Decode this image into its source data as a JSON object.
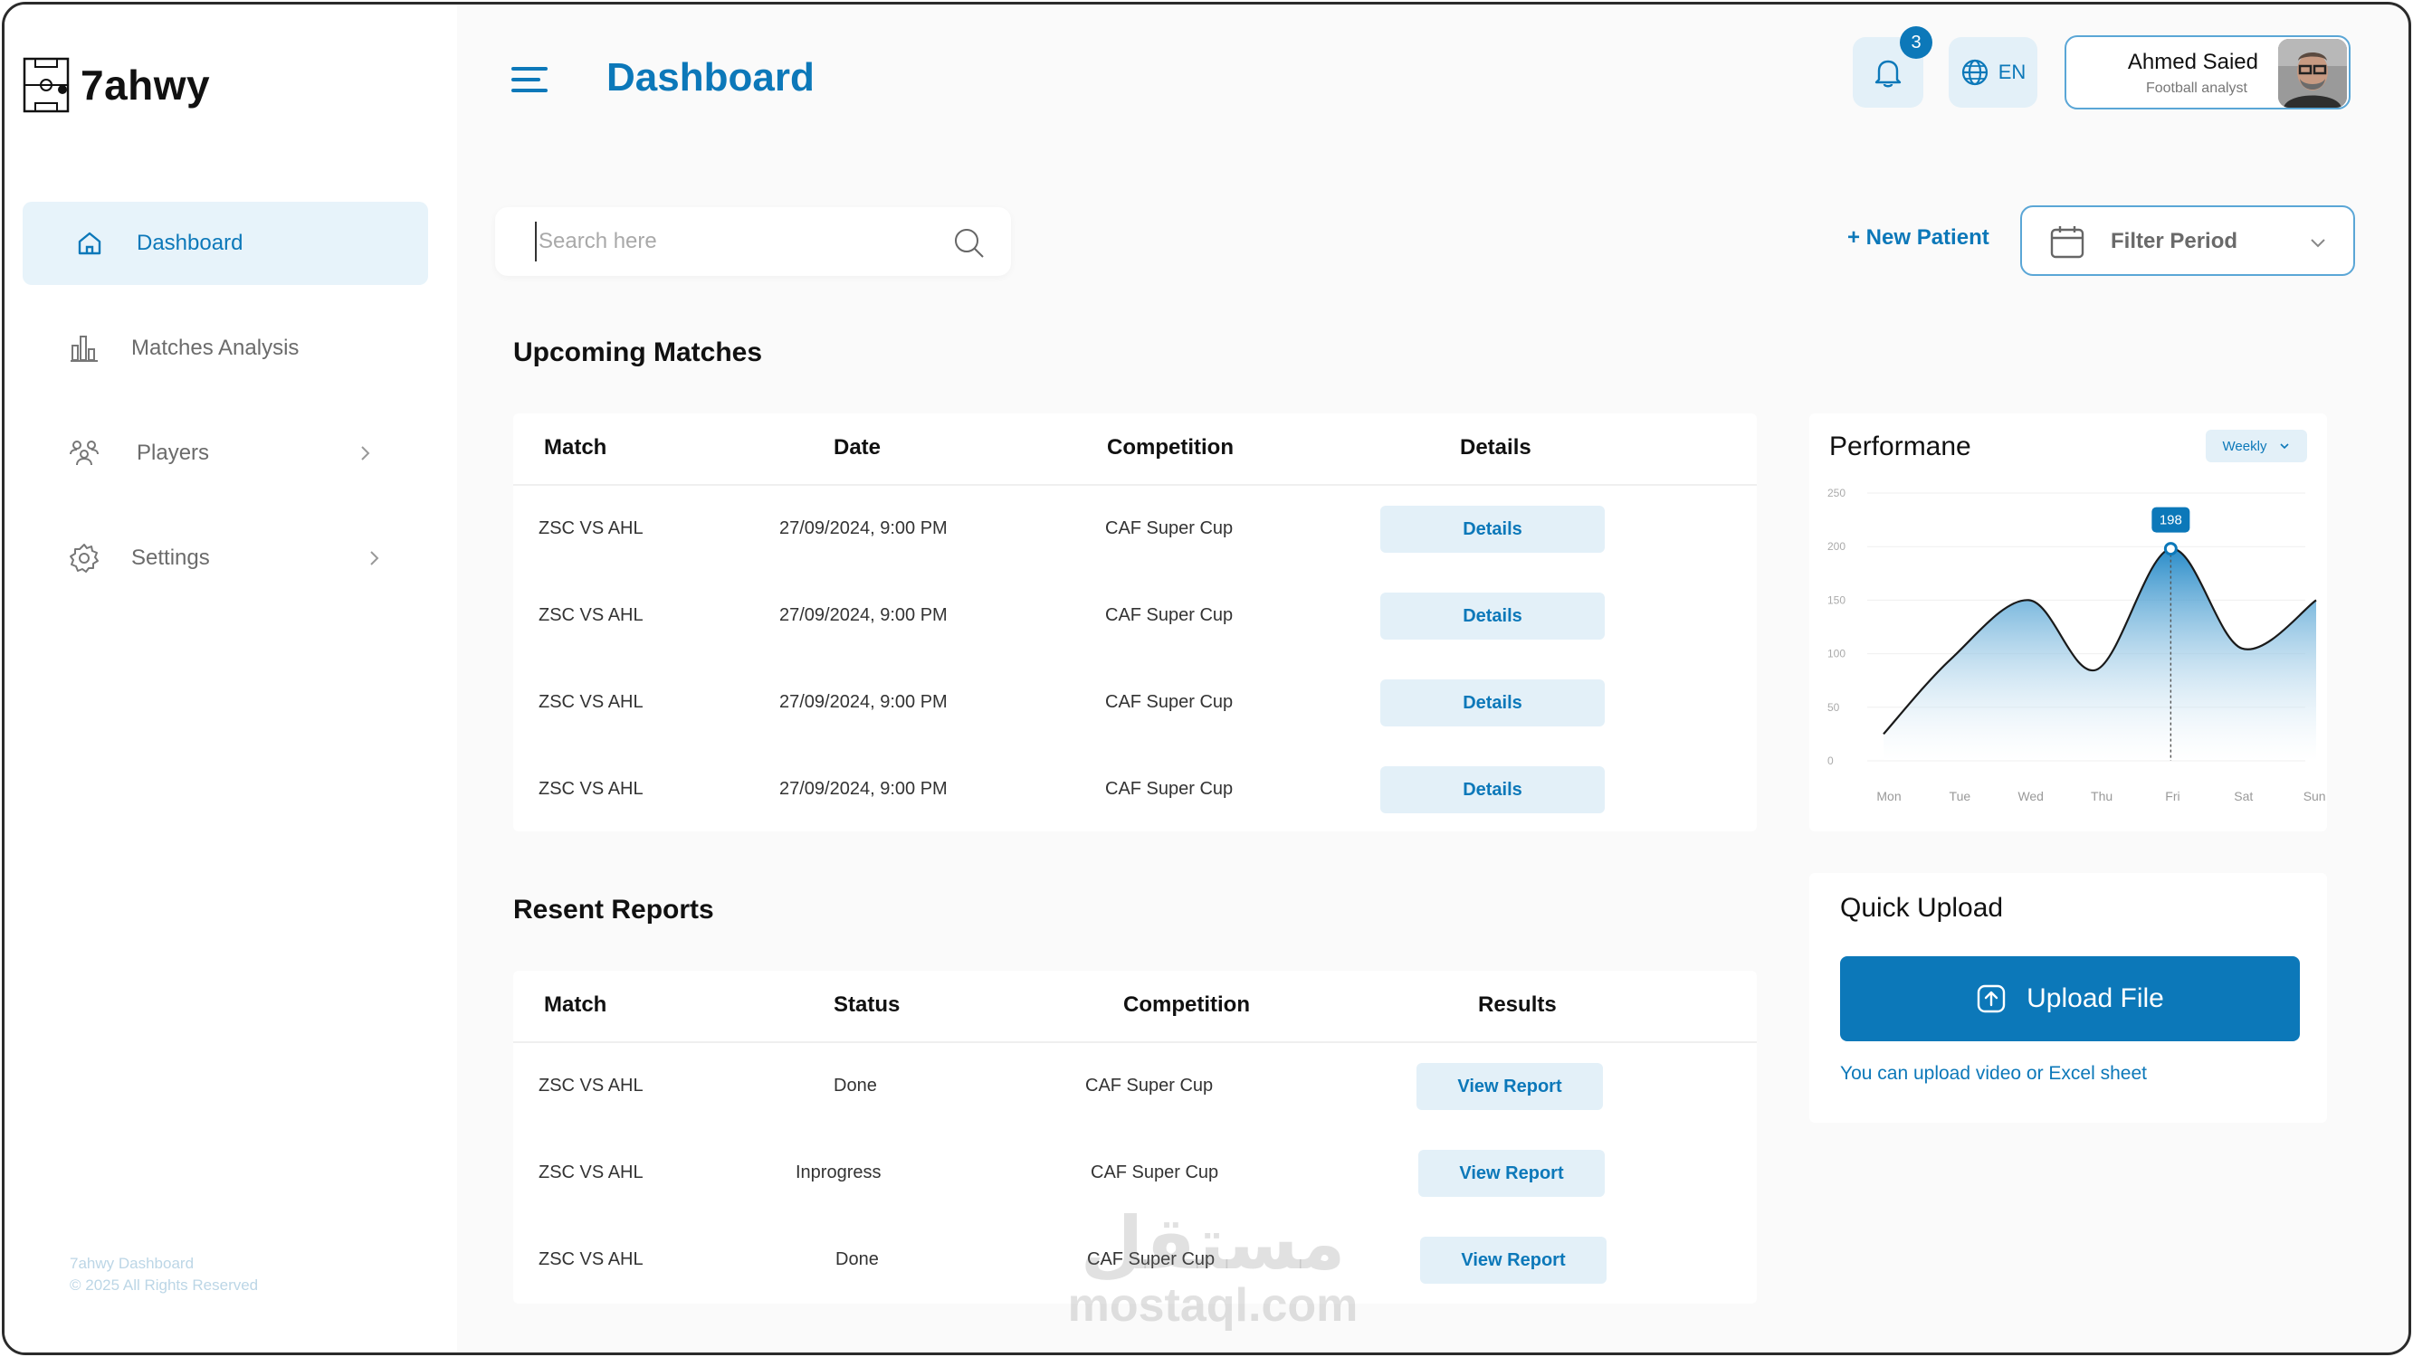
{
  "app": {
    "logo": "7ahwy"
  },
  "sidebar": {
    "items": [
      {
        "label": "Dashboard",
        "icon": "home-icon"
      },
      {
        "label": "Matches Analysis",
        "icon": "bar-chart-icon"
      },
      {
        "label": "Players",
        "icon": "players-icon"
      },
      {
        "label": "Settings",
        "icon": "gear-icon"
      }
    ],
    "footer": {
      "title": "7ahwy Dashboard",
      "copyright": "© 2025 All Rights Reserved"
    }
  },
  "header": {
    "title": "Dashboard",
    "notifications_count": "3",
    "language": "EN",
    "user": {
      "name": "Ahmed Saied",
      "role": "Football analyst"
    }
  },
  "toolbar": {
    "search_placeholder": "Search here",
    "new_patient": "+ New Patient",
    "filter_label": "Filter Period"
  },
  "upcoming": {
    "title": "Upcoming Matches",
    "columns": [
      "Match",
      "Date",
      "Competition",
      "Details"
    ],
    "rows": [
      {
        "match": "ZSC VS AHL",
        "date": "27/09/2024, 9:00 PM",
        "competition": "CAF Super Cup",
        "action": "Details"
      },
      {
        "match": "ZSC VS AHL",
        "date": "27/09/2024, 9:00 PM",
        "competition": "CAF Super Cup",
        "action": "Details"
      },
      {
        "match": "ZSC VS AHL",
        "date": "27/09/2024, 9:00 PM",
        "competition": "CAF Super Cup",
        "action": "Details"
      },
      {
        "match": "ZSC VS AHL",
        "date": "27/09/2024, 9:00 PM",
        "competition": "CAF Super Cup",
        "action": "Details"
      }
    ]
  },
  "reports": {
    "title": "Resent Reports",
    "columns": [
      "Match",
      "Status",
      "Competition",
      "Results"
    ],
    "rows": [
      {
        "match": "ZSC VS AHL",
        "status": "Done",
        "competition": "CAF Super Cup",
        "action": "View Report"
      },
      {
        "match": "ZSC VS AHL",
        "status": "Inprogress",
        "competition": "CAF Super Cup",
        "action": "View Report"
      },
      {
        "match": "ZSC VS AHL",
        "status": "Done",
        "competition": "CAF Super Cup",
        "action": "View Report"
      }
    ]
  },
  "performance": {
    "title": "Performane",
    "period": "Weekly",
    "tooltip": "198"
  },
  "chart_data": {
    "type": "area",
    "title": "Performane",
    "categories": [
      "Mon",
      "Tue",
      "Wed",
      "Thu",
      "Fri",
      "Sat",
      "Sun"
    ],
    "x": [
      0,
      0.95,
      2.05,
      3.0,
      4.05,
      5.05,
      6.1
    ],
    "series": [
      {
        "values": [
          25,
          95,
          150,
          85,
          198,
          105,
          150
        ]
      }
    ],
    "ylim": [
      0,
      250
    ],
    "yticks": [
      0,
      50,
      100,
      150,
      200,
      250
    ],
    "highlight_index": 4,
    "grid": true,
    "colors": {
      "line": "#1a1a1a",
      "fill_top": "#1e86c6",
      "fill_bottom": "#ffffff"
    }
  },
  "upload": {
    "title": "Quick Upload",
    "button": "Upload File",
    "hint": "You can upload video or Excel sheet"
  },
  "watermark": {
    "arabic": "مستقل",
    "latin": "mostaql.com"
  },
  "colors": {
    "primary": "#0c78b9",
    "light": "#e3f0f8",
    "background": "#fafafa"
  }
}
